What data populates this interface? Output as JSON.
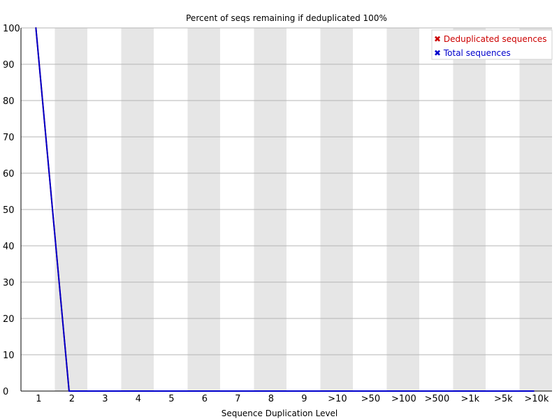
{
  "chart_data": {
    "type": "line",
    "title": "Percent of seqs remaining if deduplicated 100%",
    "xlabel": "Sequence Duplication Level",
    "ylabel": "",
    "categories": [
      "1",
      "2",
      "3",
      "4",
      "5",
      "6",
      "7",
      "8",
      "9",
      ">10",
      ">50",
      ">100",
      ">500",
      ">1k",
      ">5k",
      ">10k"
    ],
    "ylim": [
      0,
      100
    ],
    "yticks": [
      "0",
      "10",
      "20",
      "30",
      "40",
      "50",
      "60",
      "70",
      "80",
      "90",
      "100"
    ],
    "grid": true,
    "legend_position": "top-right",
    "legend_marker": "✖",
    "series": [
      {
        "name": "Deduplicated sequences",
        "color": "#cc0000",
        "values": [
          100,
          0,
          0,
          0,
          0,
          0,
          0,
          0,
          0,
          0,
          0,
          0,
          0,
          0,
          0,
          0
        ]
      },
      {
        "name": "Total sequences",
        "color": "#0000cc",
        "values": [
          100,
          0,
          0,
          0,
          0,
          0,
          0,
          0,
          0,
          0,
          0,
          0,
          0,
          0,
          0,
          0
        ]
      }
    ]
  }
}
